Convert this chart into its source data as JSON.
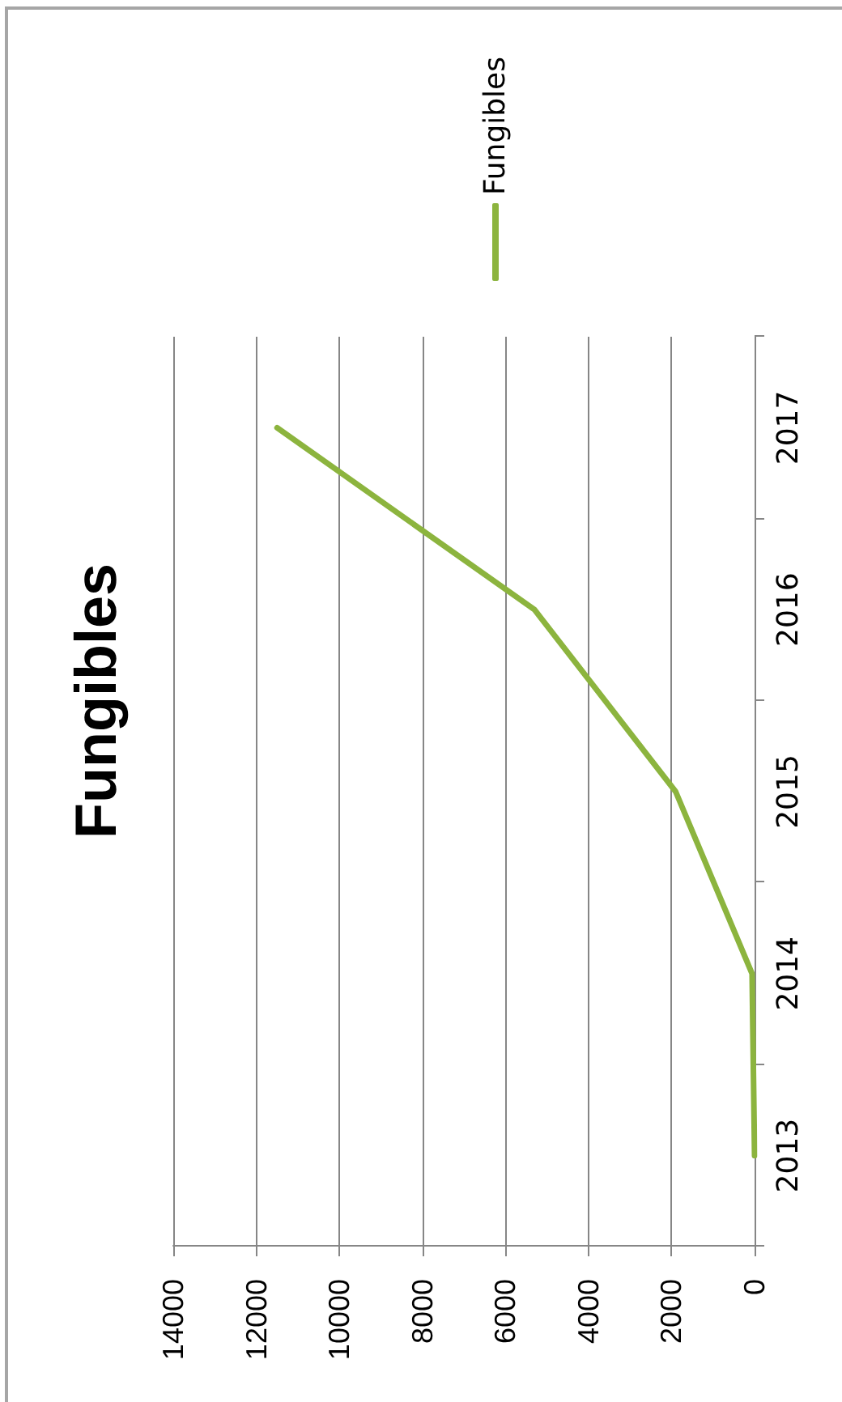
{
  "chart_data": {
    "type": "line",
    "orientation": "horizontal",
    "title": "Fungibles",
    "categories": [
      "2017",
      "2016",
      "2015",
      "2014",
      "2013"
    ],
    "series": [
      {
        "name": "Fungibles",
        "color": "#8cb43e",
        "values": [
          11500,
          5300,
          1900,
          60,
          0
        ]
      }
    ],
    "xlim": [
      14000,
      0
    ],
    "xticks": [
      14000,
      12000,
      10000,
      8000,
      6000,
      4000,
      2000,
      0
    ],
    "grid": "x",
    "legend": "top",
    "marker": "none"
  }
}
